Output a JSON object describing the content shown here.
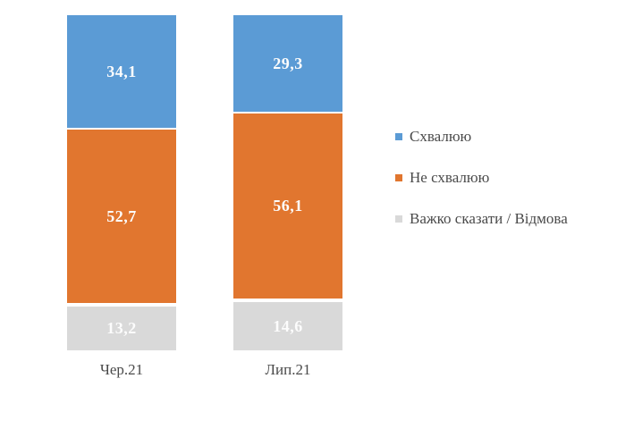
{
  "chart_data": {
    "type": "bar",
    "subtype": "stacked-column-100",
    "title": "",
    "xlabel": "",
    "ylabel": "",
    "ylim": [
      0,
      100
    ],
    "grid": false,
    "legend_position": "right",
    "decimal_separator": ",",
    "categories": [
      "Чер.21",
      "Лип.21"
    ],
    "series": [
      {
        "name": "Схвалюю",
        "color": "#5B9BD5",
        "values": [
          34.1,
          29.3
        ]
      },
      {
        "name": "Не схвалюю",
        "color": "#E1762F",
        "values": [
          52.7,
          56.1
        ]
      },
      {
        "name": "Важко сказати / Відмова",
        "color": "#D9D9D9",
        "values": [
          13.2,
          14.6
        ]
      }
    ],
    "value_labels": [
      [
        "34,1",
        "29,3"
      ],
      [
        "52,7",
        "56,1"
      ],
      [
        "13,2",
        "14,6"
      ]
    ]
  },
  "colors": {
    "background": "#FFFFFF",
    "value_label_text": "#FCFCFC",
    "axis_text": "#4A4A4A",
    "legend_text": "#4A4A4A",
    "segment_separator": "#FFFFFF"
  }
}
